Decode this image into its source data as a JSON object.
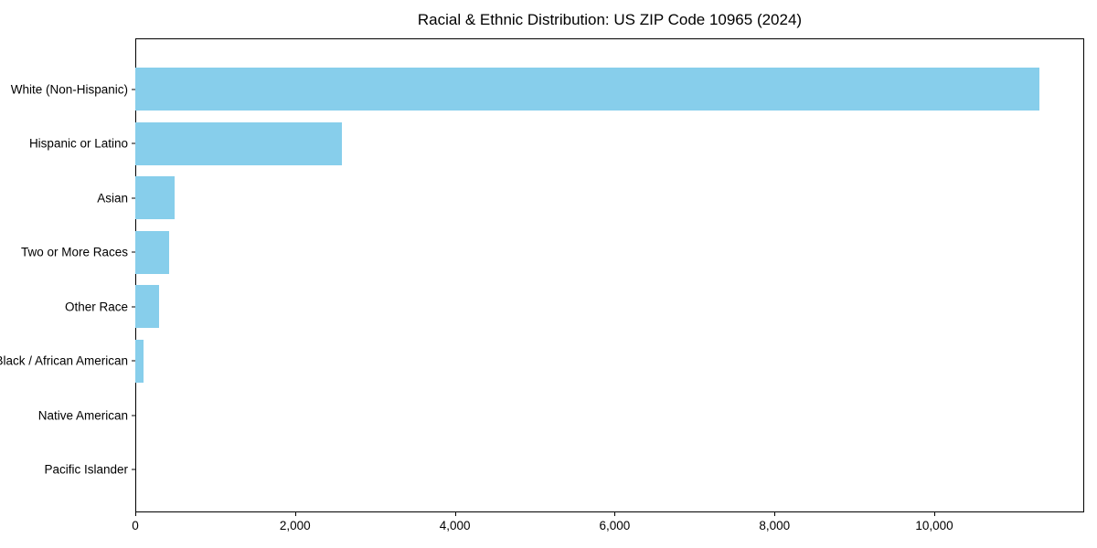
{
  "chart_data": {
    "type": "bar",
    "orientation": "horizontal",
    "title": "Racial & Ethnic Distribution: US ZIP Code 10965 (2024)",
    "categories": [
      "White (Non-Hispanic)",
      "Hispanic or Latino",
      "Asian",
      "Two or More Races",
      "Other Race",
      "Black / African American",
      "Native American",
      "Pacific Islander"
    ],
    "values": [
      11310,
      2580,
      495,
      420,
      300,
      100,
      0,
      0
    ],
    "xlabel": "",
    "ylabel": "",
    "xlim": [
      0,
      11876
    ],
    "x_ticks": [
      0,
      2000,
      4000,
      6000,
      8000,
      10000
    ],
    "x_tick_labels": [
      "0",
      "2,000",
      "4,000",
      "6,000",
      "8,000",
      "10,000"
    ],
    "grid": false,
    "legend": null,
    "bar_color": "#87CEEB",
    "axis_color": "#000000",
    "text_color": "#000000",
    "background_color": "#ffffff"
  }
}
